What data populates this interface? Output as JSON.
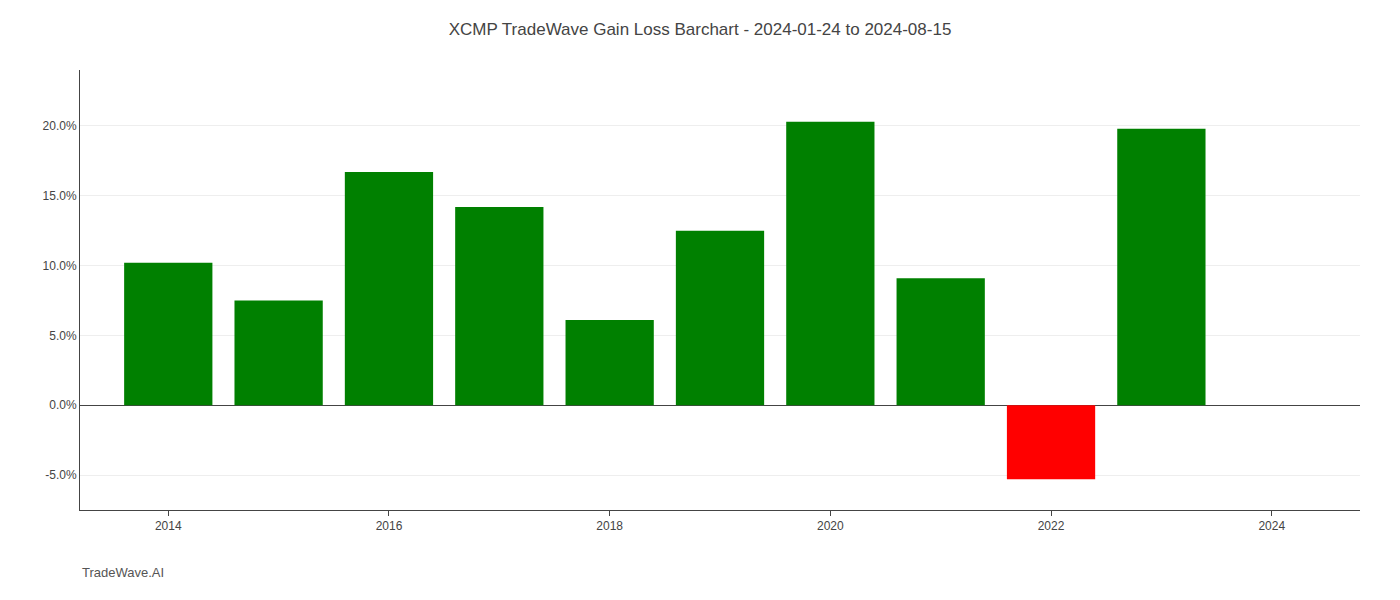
{
  "chart_data": {
    "type": "bar",
    "title": "XCMP TradeWave Gain Loss Barchart - 2024-01-24 to 2024-08-15",
    "annotations": [
      "TradeWave.AI"
    ],
    "x": [
      2014,
      2015,
      2016,
      2017,
      2018,
      2019,
      2020,
      2021,
      2022,
      2023
    ],
    "values": [
      0.102,
      0.075,
      0.167,
      0.142,
      0.061,
      0.125,
      0.203,
      0.091,
      -0.053,
      0.198
    ],
    "colors": [
      "#008000",
      "#008000",
      "#008000",
      "#008000",
      "#008000",
      "#008000",
      "#008000",
      "#008000",
      "#ff0000",
      "#008000"
    ],
    "xlim": [
      2013.2,
      2024.8
    ],
    "xticks": [
      2014,
      2016,
      2018,
      2020,
      2022,
      2024
    ],
    "ylim": [
      -0.075,
      0.24
    ],
    "yticks": [
      {
        "value": -0.05,
        "label": "-5.0%"
      },
      {
        "value": 0.0,
        "label": "0.0%"
      },
      {
        "value": 0.05,
        "label": "5.0%"
      },
      {
        "value": 0.1,
        "label": "10.0%"
      },
      {
        "value": 0.15,
        "label": "15.0%"
      },
      {
        "value": 0.2,
        "label": "20.0%"
      }
    ],
    "grid": true
  }
}
